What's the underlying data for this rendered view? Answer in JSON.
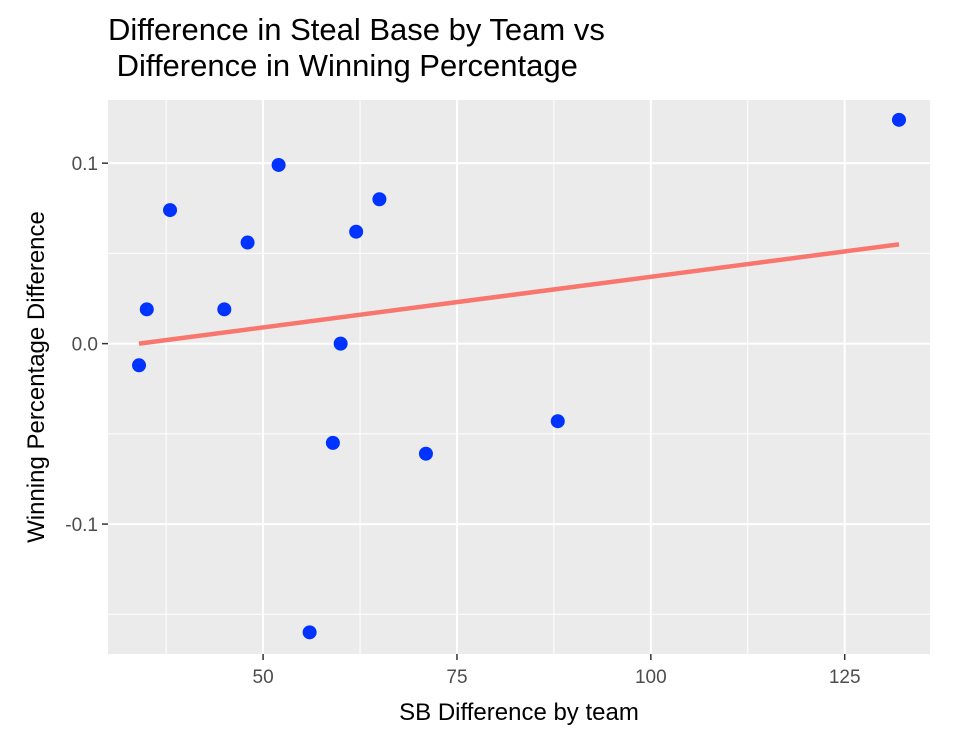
{
  "chart_data": {
    "type": "scatter",
    "title_lines": [
      "Difference in Steal Base by Team vs",
      " Difference in Winning Percentage"
    ],
    "xlabel": "SB Difference by team",
    "ylabel": "Winning Percentage Difference",
    "xlim": [
      30,
      136
    ],
    "ylim": [
      -0.172,
      0.135
    ],
    "x_ticks": [
      50,
      75,
      100,
      125
    ],
    "x_tick_labels": [
      "50",
      "75",
      "100",
      "125"
    ],
    "y_ticks": [
      -0.1,
      0.0,
      0.1
    ],
    "y_tick_labels": [
      "-0.1",
      "0.0",
      "0.1"
    ],
    "grid": true,
    "background_color": "#ebebeb",
    "point_color": "#0033ff",
    "trend_color": "#f8766d",
    "points": [
      {
        "x": 34,
        "y": -0.012
      },
      {
        "x": 35,
        "y": 0.019
      },
      {
        "x": 38,
        "y": 0.074
      },
      {
        "x": 45,
        "y": 0.019
      },
      {
        "x": 48,
        "y": 0.056
      },
      {
        "x": 52,
        "y": 0.099
      },
      {
        "x": 56,
        "y": -0.16
      },
      {
        "x": 59,
        "y": -0.055
      },
      {
        "x": 60,
        "y": 0.0
      },
      {
        "x": 62,
        "y": 0.062
      },
      {
        "x": 65,
        "y": 0.08
      },
      {
        "x": 71,
        "y": -0.061
      },
      {
        "x": 88,
        "y": -0.043
      },
      {
        "x": 132,
        "y": 0.124
      }
    ],
    "trend_line": {
      "x": [
        34,
        132
      ],
      "y": [
        0.0,
        0.055
      ]
    }
  }
}
